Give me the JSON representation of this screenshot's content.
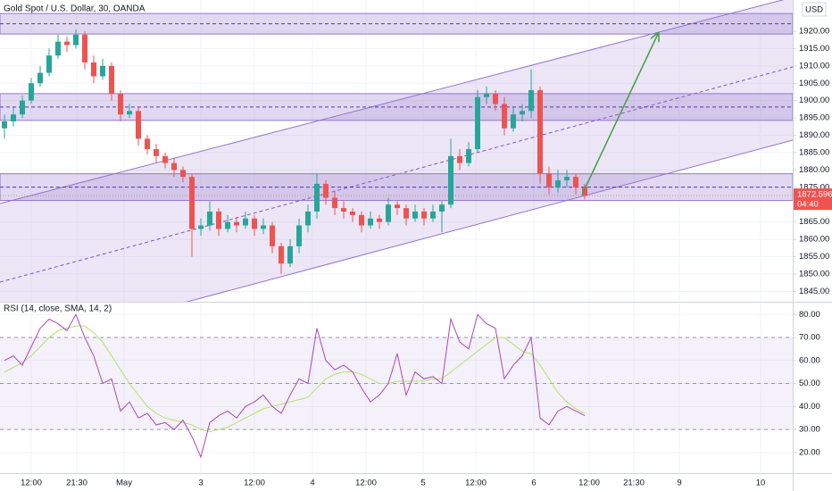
{
  "chart_data": [
    {
      "type": "candlestick",
      "title": "Gold Spot / U.S. Dollar, 30, OANDA",
      "currency": "USD",
      "up_color": "#26a69a",
      "down_color": "#ef5350",
      "grid": true,
      "open": [
        1892,
        1894,
        1896,
        1900,
        1905,
        1908,
        1913,
        1917,
        1916,
        1919,
        1911,
        1907,
        1910,
        1902,
        1896,
        1897,
        1889,
        1886,
        1884,
        1882,
        1880,
        1878,
        1863,
        1864,
        1868,
        1863,
        1865,
        1864,
        1866,
        1863,
        1864,
        1858,
        1853,
        1858,
        1864,
        1868,
        1876,
        1872,
        1869,
        1868,
        1867,
        1864,
        1866,
        1865,
        1870,
        1869,
        1866,
        1868,
        1866,
        1868,
        1870,
        1884,
        1882,
        1886,
        1901,
        1902,
        1899,
        1892,
        1896,
        1897,
        1903,
        1879,
        1875,
        1877,
        1878,
        1875
      ],
      "high": [
        1896,
        1898,
        1901.5,
        1906.5,
        1910,
        1915,
        1919,
        1918.5,
        1920.5,
        1920,
        1913,
        1912,
        1911,
        1903,
        1899,
        1898,
        1890,
        1887.5,
        1885,
        1883.5,
        1881,
        1879,
        1866,
        1871,
        1869,
        1867,
        1866.5,
        1868,
        1867,
        1866,
        1865,
        1859,
        1860,
        1866,
        1870,
        1879,
        1877,
        1874,
        1871,
        1869,
        1868,
        1868,
        1867,
        1872,
        1871,
        1870,
        1870,
        1869,
        1870,
        1871,
        1889,
        1886,
        1888,
        1903,
        1904,
        1903,
        1901,
        1898,
        1899,
        1909,
        1904,
        1881,
        1880,
        1880,
        1879,
        1876
      ],
      "low": [
        1889,
        1892.5,
        1895,
        1899,
        1904,
        1907,
        1912,
        1914,
        1915,
        1909,
        1905,
        1906,
        1900,
        1894,
        1895,
        1887,
        1884.5,
        1882,
        1880.5,
        1878,
        1876.5,
        1855,
        1861,
        1862.5,
        1861,
        1862,
        1862,
        1863,
        1861,
        1861.5,
        1856,
        1850,
        1852,
        1856,
        1862,
        1866,
        1870,
        1867,
        1866,
        1865,
        1862,
        1863,
        1863,
        1864,
        1867,
        1864,
        1865,
        1864,
        1865,
        1862,
        1869,
        1880,
        1881,
        1885,
        1899,
        1897,
        1890,
        1891,
        1894,
        1895,
        1876,
        1873,
        1873.5,
        1875,
        1873,
        1871.5
      ],
      "close": [
        1894,
        1896,
        1900,
        1905,
        1908,
        1913,
        1917,
        1916,
        1919,
        1911,
        1907,
        1910,
        1902,
        1896,
        1897,
        1889,
        1886,
        1884,
        1882,
        1880,
        1878,
        1863,
        1864,
        1868,
        1863,
        1865,
        1864,
        1866,
        1863,
        1864,
        1858,
        1853,
        1858,
        1864,
        1868,
        1876,
        1872,
        1869,
        1868,
        1867,
        1864,
        1866,
        1865,
        1870,
        1869,
        1866,
        1868,
        1866,
        1868,
        1870,
        1884,
        1882,
        1886,
        1901,
        1902,
        1899,
        1892,
        1896,
        1897,
        1903,
        1879,
        1875,
        1877,
        1878,
        1875,
        1872.596
      ],
      "last_price": 1872.596,
      "countdown": "04:40",
      "zones": [
        [
          1919.2,
          1925.1
        ],
        [
          1894.3,
          1902.0
        ],
        [
          1871.2,
          1878.9
        ]
      ],
      "xlim": [
        -0.5,
        88.3
      ],
      "xticks": [
        {
          "value": 3.0,
          "label": "12:00"
        },
        {
          "value": 8.1,
          "label": "21:30"
        },
        {
          "value": 13.4,
          "label": "May"
        },
        {
          "value": 22.0,
          "label": "3"
        },
        {
          "value": 28.0,
          "label": "12:00"
        },
        {
          "value": 34.5,
          "label": "4"
        },
        {
          "value": 40.5,
          "label": "12:00"
        },
        {
          "value": 46.9,
          "label": "5"
        },
        {
          "value": 52.8,
          "label": "12:00"
        },
        {
          "value": 59.3,
          "label": "6"
        },
        {
          "value": 65.5,
          "label": "12:00"
        },
        {
          "value": 70.5,
          "label": "21:30"
        },
        {
          "value": 75.6,
          "label": "9"
        },
        {
          "value": 84.7,
          "label": "10"
        }
      ],
      "ylim": [
        1842,
        1929
      ],
      "yticks": [
        {
          "value": 1845,
          "label": "1845.00"
        },
        {
          "value": 1850,
          "label": "1850.00"
        },
        {
          "value": 1855,
          "label": "1855.00"
        },
        {
          "value": 1860,
          "label": "1860.00"
        },
        {
          "value": 1865,
          "label": "1865.00"
        },
        {
          "value": 1875,
          "label": "1875.00"
        },
        {
          "value": 1880,
          "label": "1880.00"
        },
        {
          "value": 1885,
          "label": "1885.00"
        },
        {
          "value": 1890,
          "label": "1890.00"
        },
        {
          "value": 1895,
          "label": "1895.00"
        },
        {
          "value": 1900,
          "label": "1900.00"
        },
        {
          "value": 1905,
          "label": "1905.00"
        },
        {
          "value": 1910,
          "label": "1910.00"
        },
        {
          "value": 1915,
          "label": "1915.00"
        },
        {
          "value": 1920,
          "label": "1920.00"
        }
      ]
    },
    {
      "type": "line",
      "title": "RSI (14, close, SMA, 14, 2)",
      "levels": [
        30,
        50,
        70
      ],
      "series": [
        {
          "color": "#ab47bc",
          "values": [
            60,
            62,
            58,
            66,
            74,
            78,
            76,
            73,
            80,
            70,
            62,
            50,
            52,
            38,
            42,
            35,
            37,
            32,
            33,
            30,
            34,
            27,
            18,
            33,
            36,
            38,
            35,
            40,
            42,
            45,
            40,
            37,
            45,
            52,
            50,
            74,
            60,
            56,
            58,
            55,
            48,
            42,
            45,
            50,
            63,
            45,
            55,
            52,
            53,
            50,
            78,
            68,
            65,
            80,
            76,
            74,
            52,
            58,
            62,
            70,
            35,
            32,
            38,
            40,
            38,
            36
          ]
        },
        {
          "color": "#b6e36a",
          "values": [
            55,
            57,
            59,
            62,
            66,
            70,
            73,
            74,
            75,
            75,
            72,
            68,
            62,
            56,
            50,
            45,
            40,
            37,
            35,
            34,
            33,
            32,
            30,
            29,
            30,
            31,
            33,
            35,
            37,
            39,
            40,
            41,
            42,
            43,
            44,
            48,
            52,
            54,
            55,
            55,
            54,
            52,
            50,
            50,
            51,
            51,
            51,
            51,
            52,
            52,
            55,
            58,
            61,
            64,
            67,
            70,
            70,
            67,
            64,
            63,
            58,
            52,
            46,
            42,
            39,
            37
          ]
        }
      ],
      "ylim": [
        11,
        84
      ],
      "yticks": [
        {
          "value": 20,
          "label": "20.00"
        },
        {
          "value": 30,
          "label": "30.00"
        },
        {
          "value": 40,
          "label": "40.00"
        },
        {
          "value": 50,
          "label": "50.00"
        },
        {
          "value": 60,
          "label": "60.00"
        },
        {
          "value": 70,
          "label": "70.00"
        },
        {
          "value": 80,
          "label": "80.00"
        }
      ]
    }
  ]
}
